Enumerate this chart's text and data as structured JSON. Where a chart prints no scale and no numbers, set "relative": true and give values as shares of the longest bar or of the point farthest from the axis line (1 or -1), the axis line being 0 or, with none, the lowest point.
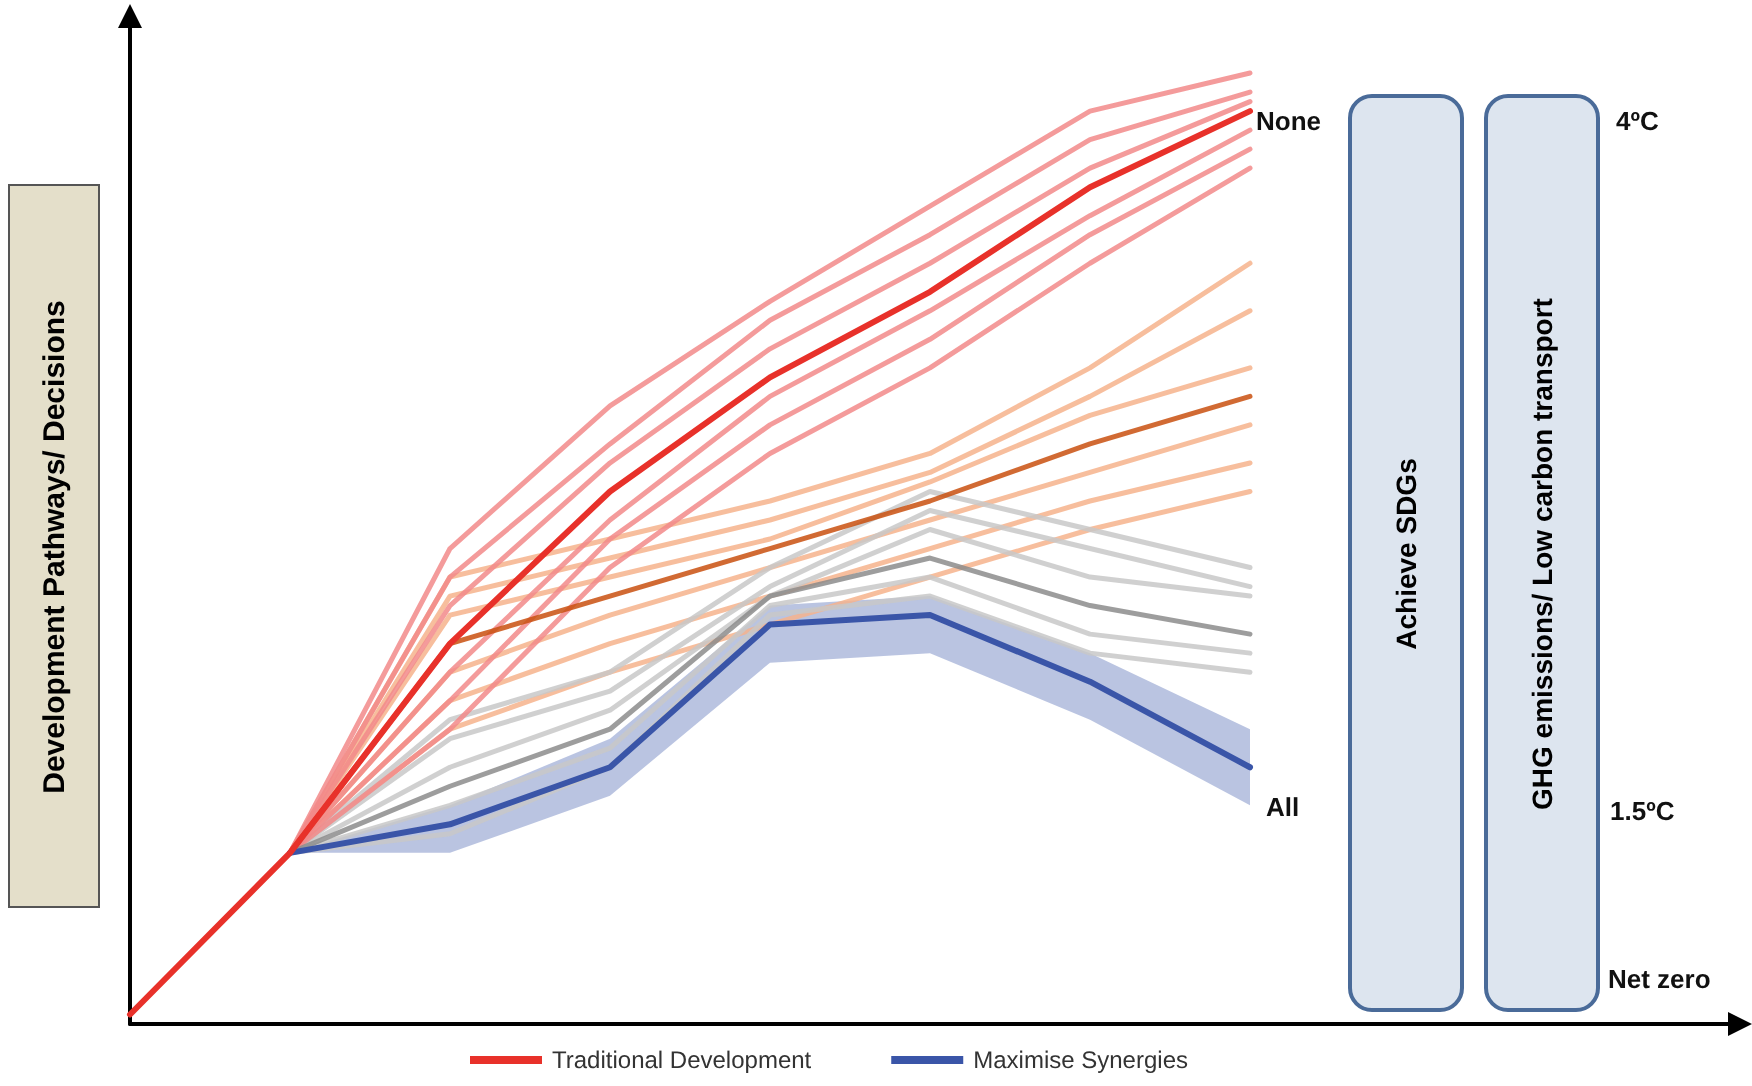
{
  "chart_data": {
    "type": "line",
    "relative": true,
    "ylabel": "Development Pathways/ Decisions",
    "categories": [
      null,
      null,
      null,
      null,
      null,
      null,
      null,
      null
    ],
    "legend": "bottom",
    "annotations": [
      "None",
      "All",
      "4ºC",
      "1.5ºC",
      "Net zero",
      "Achieve  SDGs",
      "GHG emissions/ Low carbon transport"
    ],
    "series": [
      {
        "color": "#f6b38c",
        "values": [
          null,
          0.18,
          0.47,
          0.51,
          0.55,
          0.6,
          0.69,
          0.8
        ]
      },
      {
        "color": "#f6b38c",
        "values": [
          null,
          0.18,
          0.45,
          0.49,
          0.53,
          0.58,
          0.66,
          0.75
        ]
      },
      {
        "color": "#f6b38c",
        "values": [
          null,
          0.18,
          0.43,
          0.47,
          0.51,
          0.57,
          0.64,
          0.69
        ]
      },
      {
        "color": "#f6b38c",
        "values": [
          null,
          0.18,
          0.37,
          0.43,
          0.48,
          0.53,
          0.58,
          0.63
        ]
      },
      {
        "color": "#f6b38c",
        "values": [
          null,
          0.18,
          0.34,
          0.4,
          0.45,
          0.5,
          0.55,
          0.59
        ]
      },
      {
        "color": "#f6b38c",
        "values": [
          null,
          0.18,
          0.31,
          0.37,
          0.42,
          0.47,
          0.52,
          0.56
        ]
      },
      {
        "color": "#c8c8c8",
        "values": [
          null,
          0.18,
          0.32,
          0.37,
          0.48,
          0.56,
          0.52,
          0.48
        ]
      },
      {
        "color": "#c8c8c8",
        "values": [
          null,
          0.18,
          0.3,
          0.35,
          0.46,
          0.54,
          0.5,
          0.46
        ]
      },
      {
        "color": "#c8c8c8",
        "values": [
          null,
          0.18,
          0.27,
          0.33,
          0.45,
          0.52,
          0.47,
          0.45
        ]
      },
      {
        "color": "#c8c8c8",
        "values": [
          null,
          0.18,
          0.23,
          0.29,
          0.44,
          0.47,
          0.41,
          0.39
        ]
      },
      {
        "color": "#c8c8c8",
        "values": [
          null,
          0.18,
          0.2,
          0.27,
          0.43,
          0.45,
          0.39,
          0.37
        ]
      },
      {
        "color": "#f28a8a",
        "values": [
          null,
          0.18,
          0.5,
          0.65,
          0.76,
          0.86,
          0.96,
          1.0
        ]
      },
      {
        "color": "#f28a8a",
        "values": [
          null,
          0.18,
          0.47,
          0.61,
          0.74,
          0.83,
          0.93,
          0.98
        ]
      },
      {
        "color": "#f28a8a",
        "values": [
          null,
          0.18,
          0.44,
          0.59,
          0.71,
          0.8,
          0.9,
          0.97
        ]
      },
      {
        "color": "#f28a8a",
        "values": [
          null,
          0.18,
          0.37,
          0.53,
          0.66,
          0.75,
          0.85,
          0.94
        ]
      },
      {
        "color": "#f28a8a",
        "values": [
          null,
          0.18,
          0.34,
          0.51,
          0.63,
          0.72,
          0.83,
          0.92
        ]
      },
      {
        "color": "#f28a8a",
        "values": [
          null,
          0.18,
          0.31,
          0.48,
          0.6,
          0.69,
          0.8,
          0.9
        ]
      },
      {
        "color": "#c9500f",
        "values": [
          null,
          0.18,
          0.4,
          0.45,
          0.5,
          0.55,
          0.61,
          0.66
        ]
      },
      {
        "color": "#8c8c8c",
        "values": [
          null,
          0.18,
          0.25,
          0.31,
          0.45,
          0.49,
          0.44,
          0.41
        ]
      },
      {
        "name": "Maximise Synergies",
        "color": "#3a55a8",
        "values": [
          null,
          0.18,
          0.21,
          0.27,
          0.42,
          0.43,
          0.36,
          0.27
        ],
        "lower": [
          null,
          0.18,
          0.18,
          0.24,
          0.38,
          0.39,
          0.32,
          0.23
        ],
        "upper": [
          null,
          0.18,
          0.23,
          0.3,
          0.44,
          0.45,
          0.39,
          0.31
        ]
      },
      {
        "name": "Traditional Development",
        "color": "#e8312a",
        "values": [
          0.01,
          0.18,
          0.4,
          0.56,
          0.68,
          0.77,
          0.88,
          0.96
        ]
      }
    ]
  }
}
